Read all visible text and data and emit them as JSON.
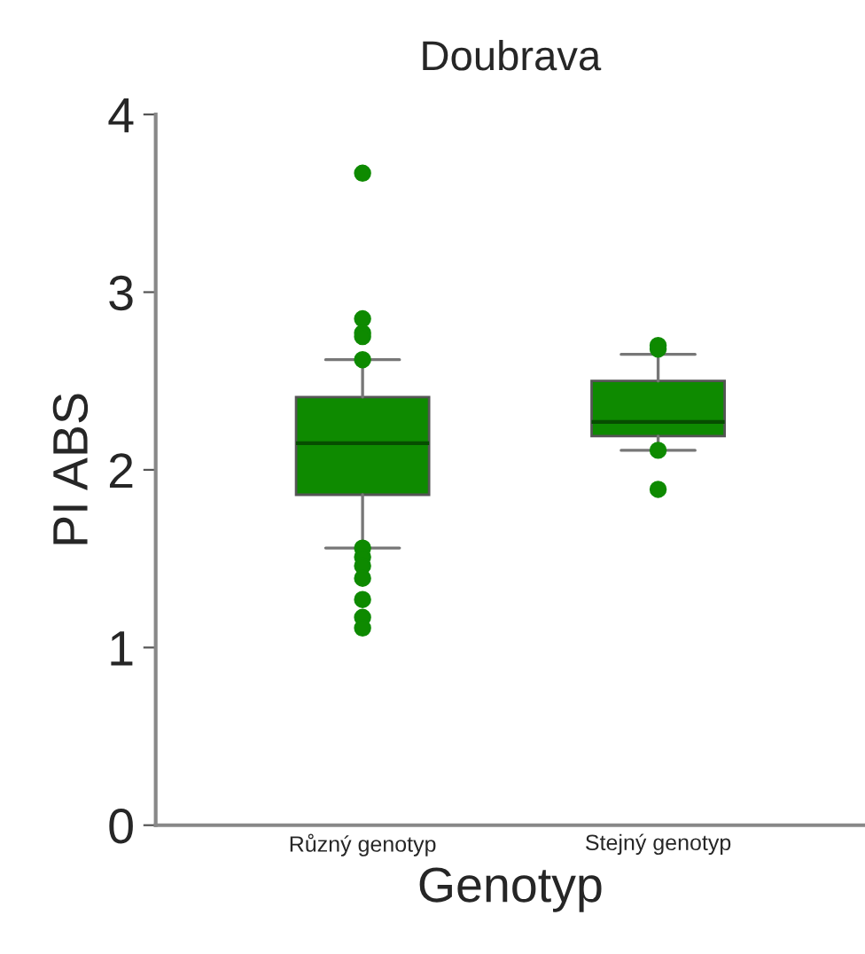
{
  "chart_data": {
    "type": "box",
    "title": "Doubrava",
    "xlabel": "Genotyp",
    "ylabel": "PI ABS",
    "categories": [
      "Různý genotyp",
      "Stejný genotyp"
    ],
    "color": "#0e8a00",
    "boxes": [
      {
        "low": 1.56,
        "q1": 1.86,
        "median": 2.15,
        "q3": 2.41,
        "high": 2.62,
        "outliers": [
          3.67,
          2.85,
          2.77,
          2.75,
          2.62,
          1.56,
          1.51,
          1.46,
          1.39,
          1.27,
          1.17,
          1.11
        ]
      },
      {
        "low": 2.11,
        "q1": 2.19,
        "median": 2.27,
        "q3": 2.5,
        "high": 2.65,
        "outliers": [
          2.7,
          2.68,
          2.11,
          1.89
        ]
      }
    ],
    "ylim": [
      0,
      4
    ],
    "yticks": [
      0,
      1,
      2,
      3,
      4
    ],
    "grid": false
  }
}
